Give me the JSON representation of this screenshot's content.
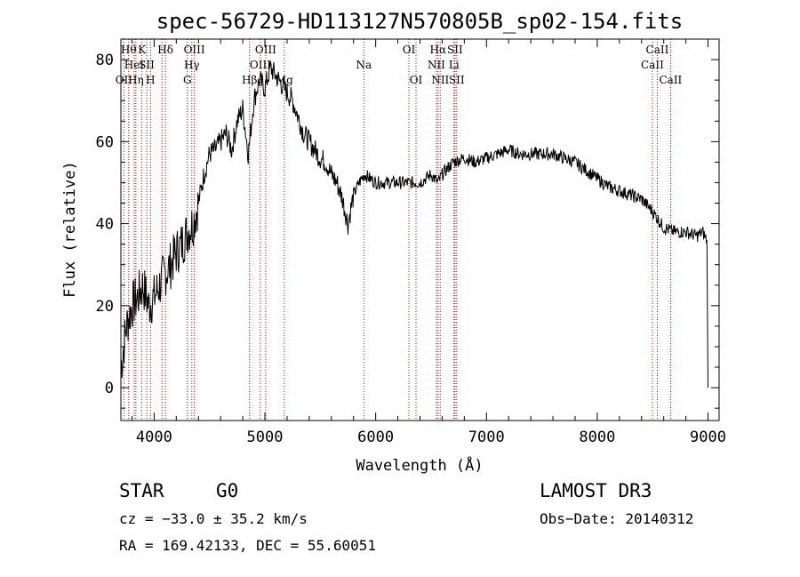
{
  "chart_data": {
    "type": "line",
    "title": "spec-56729-HD113127N570805B_sp02-154.fits",
    "xlabel": "Wavelength (Å)",
    "ylabel": "Flux (relative)",
    "xlim": [
      3700,
      9100
    ],
    "ylim": [
      -8,
      85
    ],
    "xticks": [
      4000,
      5000,
      6000,
      7000,
      8000,
      9000
    ],
    "yticks": [
      0,
      20,
      40,
      60,
      80
    ],
    "grid": false,
    "series": [
      {
        "color": "#000000",
        "x": [
          3700,
          3750,
          3800,
          3850,
          3900,
          3950,
          4000,
          4050,
          4100,
          4150,
          4200,
          4250,
          4300,
          4350,
          4400,
          4450,
          4500,
          4550,
          4600,
          4650,
          4700,
          4750,
          4800,
          4850,
          4900,
          4950,
          5000,
          5050,
          5100,
          5150,
          5200,
          5250,
          5300,
          5350,
          5400,
          5450,
          5500,
          5550,
          5600,
          5650,
          5700,
          5750,
          5800,
          5850,
          5900,
          5950,
          6000,
          6100,
          6200,
          6300,
          6400,
          6500,
          6563,
          6600,
          6700,
          6800,
          6900,
          7000,
          7100,
          7200,
          7300,
          7400,
          7500,
          7600,
          7700,
          7800,
          7900,
          8000,
          8100,
          8200,
          8300,
          8400,
          8500,
          8600,
          8700,
          8800,
          8900,
          8950,
          8990,
          9000
        ],
        "y": [
          5,
          15,
          20,
          22,
          25,
          20,
          22,
          25,
          28,
          30,
          33,
          35,
          38,
          40,
          45,
          52,
          57,
          58,
          60,
          62,
          58,
          65,
          68,
          57,
          70,
          75,
          73,
          78,
          76,
          74,
          72,
          70,
          66,
          62,
          60,
          58,
          56,
          55,
          52,
          50,
          46,
          40,
          47,
          50,
          52,
          51,
          50,
          50,
          50,
          50,
          50,
          52,
          50,
          52,
          55,
          56,
          55,
          56,
          57,
          58,
          57,
          57,
          57,
          57,
          56,
          55,
          53,
          51,
          49,
          48,
          47,
          46,
          43,
          39,
          38,
          38,
          37,
          38,
          36,
          0
        ]
      }
    ],
    "spectral_lines": [
      {
        "x": 3727,
        "label": "OII",
        "row": 3
      },
      {
        "x": 3770,
        "label": "Hθ",
        "row": 1
      },
      {
        "x": 3820,
        "label": "HeI",
        "row": 2
      },
      {
        "x": 3835,
        "label": "Hη",
        "row": 3
      },
      {
        "x": 3889,
        "label": "K",
        "row": 1
      },
      {
        "x": 3933,
        "label": "SII",
        "row": 2
      },
      {
        "x": 3968,
        "label": "H",
        "row": 3
      },
      {
        "x": 4102,
        "label": "Hδ",
        "row": 1
      },
      {
        "x": 4071,
        "label": "",
        "row": 0
      },
      {
        "x": 4300,
        "label": "G",
        "row": 3
      },
      {
        "x": 4340,
        "label": "Hγ",
        "row": 2
      },
      {
        "x": 4363,
        "label": "OIII",
        "row": 1
      },
      {
        "x": 4861,
        "label": "Hβ",
        "row": 3
      },
      {
        "x": 4959,
        "label": "OIII",
        "row": 2
      },
      {
        "x": 5007,
        "label": "OIII",
        "row": 1
      },
      {
        "x": 5175,
        "label": "Mg",
        "row": 3
      },
      {
        "x": 5893,
        "label": "Na",
        "row": 2
      },
      {
        "x": 6300,
        "label": "OI",
        "row": 1
      },
      {
        "x": 6364,
        "label": "OI",
        "row": 3
      },
      {
        "x": 6548,
        "label": "NII",
        "row": 2
      },
      {
        "x": 6563,
        "label": "Hα",
        "row": 1
      },
      {
        "x": 6583,
        "label": "NII",
        "row": 3
      },
      {
        "x": 6707,
        "label": "Li",
        "row": 2
      },
      {
        "x": 6716,
        "label": "SII",
        "row": 1
      },
      {
        "x": 6731,
        "label": "SII",
        "row": 3
      },
      {
        "x": 8498,
        "label": "CaII",
        "row": 2
      },
      {
        "x": 8542,
        "label": "CaII",
        "row": 1
      },
      {
        "x": 8662,
        "label": "CaII",
        "row": 3
      }
    ]
  },
  "info": {
    "class": "STAR",
    "subclass": "G0",
    "survey": "LAMOST DR3",
    "cz": "cz = −33.0 ± 35.2 km/s",
    "obs_date": "Obs−Date: 20140312",
    "radec": "RA = 169.42133, DEC =  55.60051"
  }
}
